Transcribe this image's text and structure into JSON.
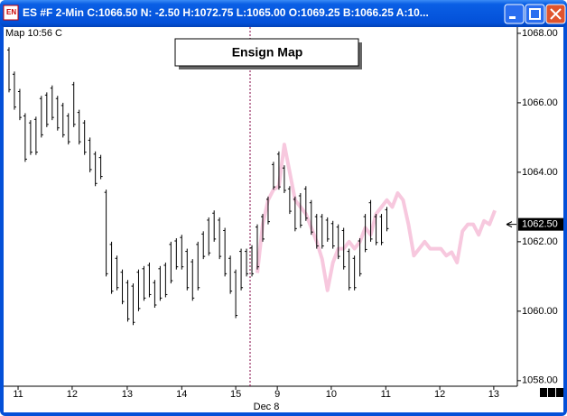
{
  "window": {
    "title": "ES #F 2-Min C:1066.50 N: -2.50 H:1072.75 L:1065.00 O:1069.25 B:1066.25 A:10..."
  },
  "chart_data": {
    "type": "ohlc",
    "corner_label": "Map 10:56 C",
    "title": "Ensign Map",
    "date_label": "Dec 8",
    "xlim": [
      0,
      95
    ],
    "xticks": [
      {
        "value": 2.68,
        "label": "11"
      },
      {
        "value": 12.7,
        "label": "12"
      },
      {
        "value": 22.9,
        "label": "13"
      },
      {
        "value": 33.0,
        "label": "14"
      },
      {
        "value": 43.0,
        "label": "15"
      },
      {
        "value": 50.7,
        "label": "9"
      },
      {
        "value": 60.7,
        "label": "10"
      },
      {
        "value": 70.8,
        "label": "11"
      },
      {
        "value": 80.8,
        "label": "12"
      },
      {
        "value": 90.8,
        "label": "13"
      }
    ],
    "ylim": [
      1057.84,
      1068.18
    ],
    "yticks": [
      {
        "value": 1058,
        "label": "1058.00"
      },
      {
        "value": 1060,
        "label": "1060.00"
      },
      {
        "value": 1062,
        "label": "1062.00"
      },
      {
        "value": 1064,
        "label": "1064.00"
      },
      {
        "value": 1066,
        "label": "1066.00"
      },
      {
        "value": 1068,
        "label": "1068.00"
      }
    ],
    "last_price": {
      "value": 1062.5,
      "label": "1062.50"
    },
    "series": [
      {
        "type": "ohlc",
        "color": "#000000",
        "x": [
          1,
          2,
          3,
          4,
          5,
          6,
          7,
          8,
          9,
          10,
          11,
          12,
          13,
          14,
          15,
          16,
          17,
          18,
          19,
          20,
          21,
          22,
          23,
          24,
          25,
          26,
          27,
          28,
          29,
          30,
          31,
          32,
          33,
          34,
          35,
          36,
          37,
          38,
          39,
          40,
          41,
          42,
          43,
          44,
          45,
          46,
          47,
          48,
          49,
          50,
          51,
          52,
          53,
          54,
          55,
          56,
          57,
          58,
          59,
          60,
          61,
          62,
          63,
          64,
          65,
          66,
          67,
          68,
          69,
          70,
          71
        ],
        "high": [
          1067.6,
          1066.9,
          1066.4,
          1065.7,
          1065.5,
          1065.6,
          1066.2,
          1066.3,
          1066.5,
          1066.2,
          1066.0,
          1065.7,
          1066.6,
          1065.8,
          1065.5,
          1065.0,
          1064.6,
          1064.5,
          1063.5,
          1062.0,
          1061.6,
          1061.2,
          1060.9,
          1060.8,
          1061.2,
          1061.3,
          1061.4,
          1060.9,
          1061.3,
          1061.4,
          1062.0,
          1062.1,
          1062.2,
          1061.8,
          1061.5,
          1062.0,
          1062.3,
          1062.7,
          1062.9,
          1062.7,
          1062.4,
          1061.6,
          1061.2,
          1061.8,
          1061.8,
          1061.9,
          1062.5,
          1062.8,
          1063.3,
          1064.3,
          1064.6,
          1064.2,
          1063.6,
          1063.3,
          1063.4,
          1063.6,
          1063.2,
          1062.8,
          1062.8,
          1062.7,
          1062.6,
          1062.5,
          1062.4,
          1061.8,
          1061.6,
          1062.1,
          1062.8,
          1063.2,
          1062.8,
          1062.8,
          1063.0
        ],
        "low": [
          1066.3,
          1065.8,
          1065.5,
          1064.3,
          1064.5,
          1064.5,
          1065.0,
          1065.3,
          1065.5,
          1065.2,
          1065.0,
          1064.8,
          1065.3,
          1064.8,
          1064.5,
          1064.0,
          1063.6,
          1063.8,
          1061.0,
          1060.5,
          1060.6,
          1060.2,
          1059.7,
          1059.6,
          1060.0,
          1060.3,
          1060.4,
          1060.1,
          1060.3,
          1060.4,
          1060.8,
          1061.2,
          1061.2,
          1060.6,
          1060.3,
          1060.6,
          1061.5,
          1061.6,
          1062.0,
          1061.5,
          1061.0,
          1060.5,
          1059.8,
          1060.6,
          1061.0,
          1061.0,
          1061.2,
          1062.0,
          1062.5,
          1063.5,
          1063.5,
          1063.4,
          1062.8,
          1062.3,
          1062.4,
          1062.6,
          1062.2,
          1061.8,
          1061.8,
          1062.0,
          1061.8,
          1061.5,
          1061.2,
          1060.6,
          1060.6,
          1061.0,
          1061.7,
          1062.0,
          1061.9,
          1061.9,
          1062.3
        ]
      },
      {
        "type": "line",
        "color": "#f7c8de",
        "x": [
          47,
          48,
          49,
          50,
          51,
          52,
          53,
          54,
          55,
          56,
          57,
          58,
          59,
          60,
          61,
          62,
          63,
          64,
          65,
          66,
          67,
          68,
          69,
          70,
          71,
          72,
          73,
          74,
          75,
          76,
          77,
          78,
          79,
          80,
          81,
          82,
          83,
          84,
          85,
          86,
          87,
          88,
          89,
          90,
          91
        ],
        "values": [
          1061.1,
          1062.5,
          1063.2,
          1063.5,
          1063.6,
          1064.8,
          1064.0,
          1063.2,
          1063.0,
          1062.8,
          1062.4,
          1062.0,
          1061.5,
          1060.6,
          1061.4,
          1061.8,
          1061.8,
          1062.0,
          1061.8,
          1062.0,
          1062.4,
          1062.2,
          1062.8,
          1063.0,
          1063.2,
          1063.0,
          1063.4,
          1063.2,
          1062.5,
          1061.6,
          1061.8,
          1062.0,
          1061.8,
          1061.8,
          1061.8,
          1061.6,
          1061.7,
          1061.4,
          1062.3,
          1062.5,
          1062.5,
          1062.2,
          1062.6,
          1062.5,
          1062.9
        ]
      }
    ]
  }
}
